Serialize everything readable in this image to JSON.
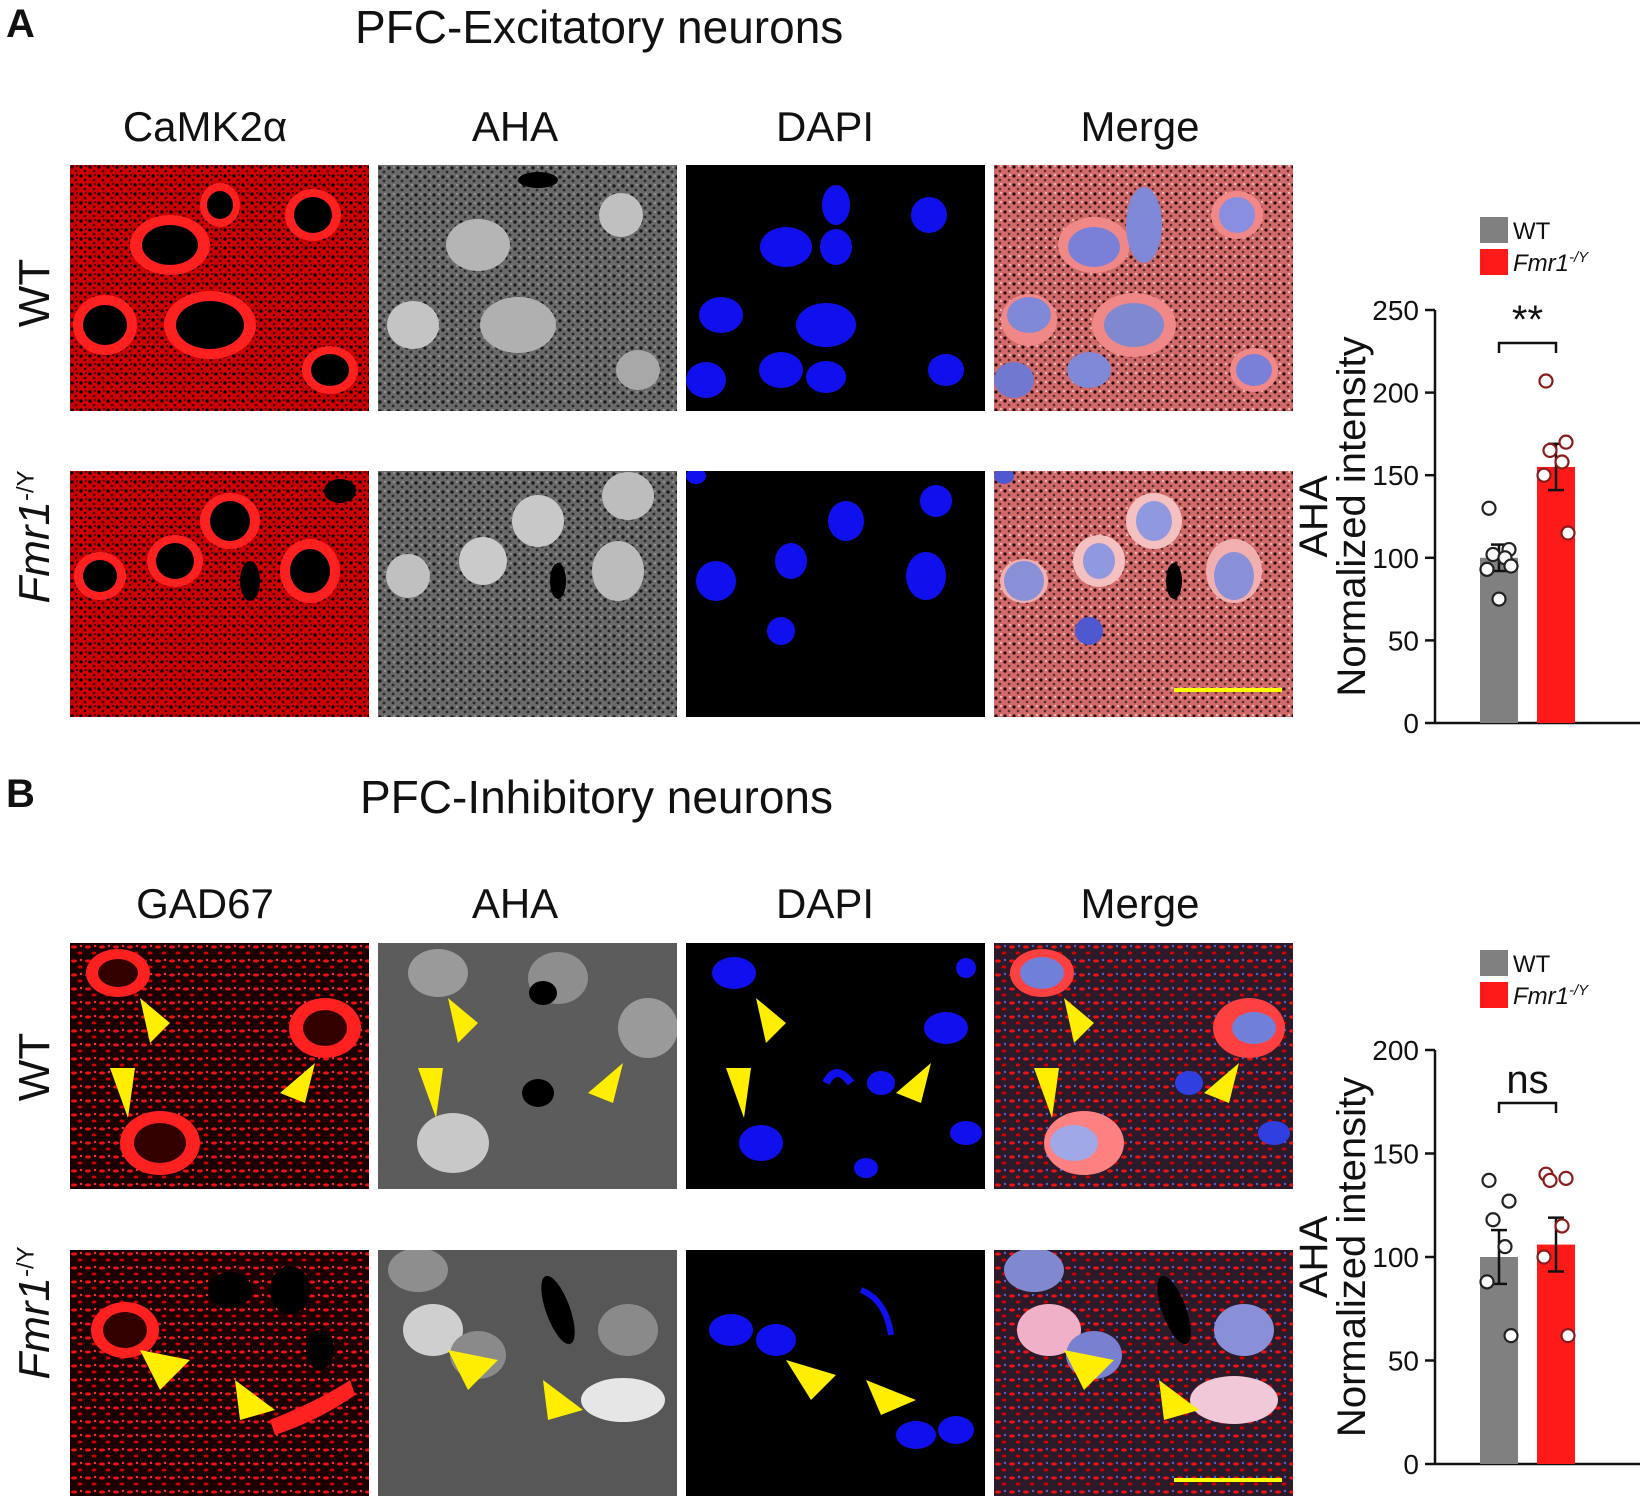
{
  "panels": [
    {
      "letter": "A",
      "title": "PFC-Excitatory neurons",
      "columns": [
        "CaMK2α",
        "AHA",
        "DAPI",
        "Merge"
      ],
      "rows": [
        {
          "label": "WT"
        },
        {
          "label_main": "Fmr1",
          "label_sup": "-/Y"
        }
      ]
    },
    {
      "letter": "B",
      "title": "PFC-Inhibitory neurons",
      "columns": [
        "GAD67",
        "AHA",
        "DAPI",
        "Merge"
      ],
      "rows": [
        {
          "label": "WT"
        },
        {
          "label_main": "Fmr1",
          "label_sup": "-/Y"
        }
      ]
    }
  ],
  "colors": {
    "wt": "#808080",
    "fmr1": "#ff1a1a",
    "fmr1_points": "#8b1a1a",
    "scale_bar": "#ffff00",
    "arrowhead": "#ffee00"
  },
  "chart_data": [
    {
      "type": "bar",
      "categories": [
        "WT",
        "Fmr1-/Y"
      ],
      "legend": [
        {
          "main": "WT",
          "sup": ""
        },
        {
          "main": "Fmr1",
          "sup": "-/Y"
        }
      ],
      "legend_position": "top",
      "series": [
        {
          "name": "WT",
          "mean": 100,
          "sem": 8,
          "points": [
            130,
            105,
            102,
            100,
            93,
            95,
            75
          ]
        },
        {
          "name": "Fmr1-/Y",
          "mean": 155,
          "sem": 14,
          "points": [
            207,
            170,
            165,
            158,
            150,
            115
          ]
        }
      ],
      "ylabel_top": "AHA",
      "ylabel_bottom": "Normalized intensity",
      "ylim": [
        0,
        250
      ],
      "yticks": [
        0,
        50,
        100,
        150,
        200,
        250
      ],
      "significance": "**"
    },
    {
      "type": "bar",
      "categories": [
        "WT",
        "Fmr1-/Y"
      ],
      "legend": [
        {
          "main": "WT",
          "sup": ""
        },
        {
          "main": "Fmr1",
          "sup": "-/Y"
        }
      ],
      "legend_position": "top",
      "series": [
        {
          "name": "WT",
          "mean": 100,
          "sem": 13,
          "points": [
            137,
            127,
            118,
            105,
            88,
            62
          ]
        },
        {
          "name": "Fmr1-/Y",
          "mean": 106,
          "sem": 13,
          "points": [
            140,
            138,
            137,
            115,
            100,
            62
          ]
        }
      ],
      "ylabel_top": "AHA",
      "ylabel_bottom": "Normalized intensity",
      "ylim": [
        0,
        200
      ],
      "yticks": [
        0,
        50,
        100,
        150,
        200
      ],
      "significance": "ns"
    }
  ]
}
